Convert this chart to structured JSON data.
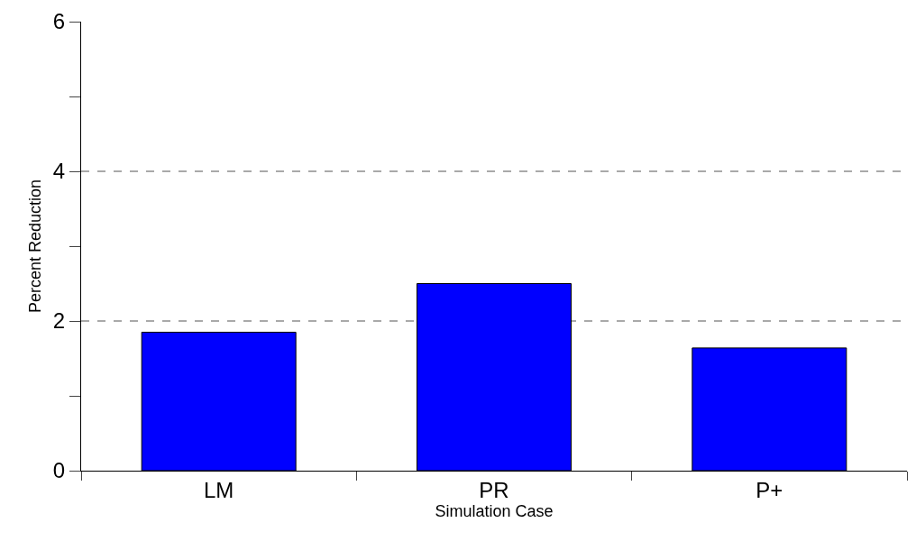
{
  "chart_data": {
    "type": "bar",
    "xlabel": "Simulation Case",
    "ylabel": "Percent Reduction",
    "categories": [
      "LM",
      "PR",
      "P+"
    ],
    "values": [
      1.85,
      2.5,
      1.64
    ],
    "color": "#0000ff",
    "ylim": [
      0,
      6
    ],
    "yticks": [
      0,
      {
        "value": 1,
        "label": null
      },
      2,
      {
        "value": 3,
        "label": null
      },
      4,
      {
        "value": 5,
        "label": null
      },
      6
    ],
    "ref_lines": [
      {
        "axis": "y",
        "value": 2,
        "color": "#555555",
        "line_style": "dashed"
      },
      {
        "axis": "y",
        "value": 4,
        "color": "#555555",
        "line_style": "dashed"
      }
    ]
  }
}
